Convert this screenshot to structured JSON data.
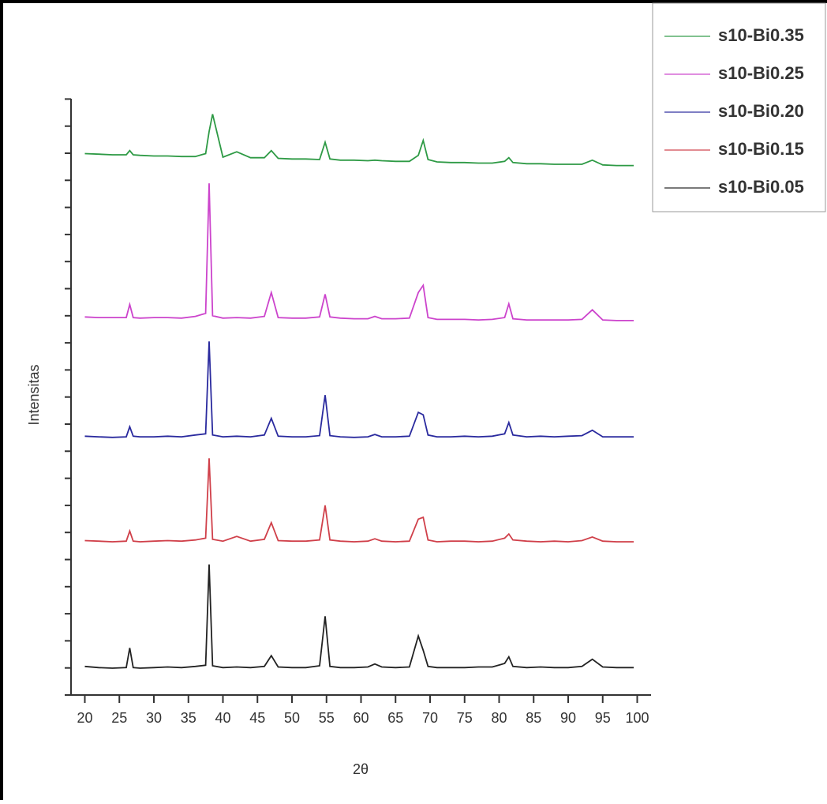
{
  "chart_data": {
    "type": "line",
    "xlabel": "2θ",
    "ylabel": "Intensitas",
    "xlim": [
      18,
      102
    ],
    "xticks": [
      20,
      25,
      30,
      35,
      40,
      45,
      50,
      55,
      60,
      65,
      70,
      75,
      80,
      85,
      90,
      95,
      100
    ],
    "ylim": [
      0,
      100
    ],
    "x": [
      20,
      22,
      24,
      26,
      26.5,
      27,
      28,
      30,
      32,
      34,
      36,
      37.5,
      38,
      38.5,
      40,
      42,
      44,
      46,
      47,
      48,
      50,
      52,
      54,
      54.8,
      55.5,
      57,
      59,
      61,
      62,
      63,
      65,
      67,
      68.3,
      69,
      69.7,
      71,
      73,
      75,
      77,
      79,
      80.8,
      81.4,
      82,
      84,
      86,
      88,
      90,
      92,
      93.5,
      95,
      97,
      99.5
    ],
    "legend": "upper right",
    "series": [
      {
        "name": "s10-Bi0.35",
        "color": "#2e9a45",
        "values": [
          90.8,
          90.7,
          90.6,
          90.6,
          91.3,
          90.6,
          90.5,
          90.4,
          90.4,
          90.3,
          90.3,
          90.8,
          94.5,
          97.4,
          90.2,
          91.1,
          90.1,
          90.1,
          91.3,
          90.0,
          89.9,
          89.9,
          89.8,
          92.7,
          89.9,
          89.7,
          89.7,
          89.6,
          89.7,
          89.6,
          89.5,
          89.5,
          90.5,
          93.0,
          89.8,
          89.4,
          89.3,
          89.3,
          89.2,
          89.2,
          89.5,
          90.1,
          89.3,
          89.1,
          89.1,
          89.0,
          89.0,
          89.0,
          89.7,
          88.9,
          88.8,
          88.8
        ]
      },
      {
        "name": "s10-Bi0.25",
        "color": "#cc44cc",
        "values": [
          63.4,
          63.3,
          63.3,
          63.3,
          65.5,
          63.3,
          63.2,
          63.3,
          63.3,
          63.2,
          63.5,
          64.0,
          85.8,
          63.6,
          63.2,
          63.3,
          63.2,
          63.5,
          67.5,
          63.3,
          63.2,
          63.2,
          63.4,
          67.2,
          63.4,
          63.2,
          63.1,
          63.1,
          63.5,
          63.1,
          63.1,
          63.2,
          67.5,
          68.7,
          63.3,
          63.0,
          63.0,
          63.0,
          62.9,
          63.0,
          63.3,
          65.6,
          63.1,
          62.9,
          62.9,
          62.9,
          62.9,
          63.0,
          64.6,
          62.9,
          62.8,
          62.8
        ]
      },
      {
        "name": "s10-Bi0.20",
        "color": "#2a2a9e",
        "values": [
          43.4,
          43.3,
          43.2,
          43.3,
          45.0,
          43.4,
          43.3,
          43.3,
          43.4,
          43.3,
          43.6,
          43.8,
          59.3,
          43.6,
          43.3,
          43.4,
          43.3,
          43.6,
          46.4,
          43.4,
          43.3,
          43.3,
          43.5,
          50.3,
          43.5,
          43.3,
          43.2,
          43.3,
          43.7,
          43.3,
          43.3,
          43.4,
          47.4,
          47.0,
          43.6,
          43.3,
          43.3,
          43.4,
          43.3,
          43.4,
          43.8,
          45.7,
          43.6,
          43.3,
          43.4,
          43.3,
          43.4,
          43.5,
          44.4,
          43.3,
          43.3,
          43.3
        ]
      },
      {
        "name": "s10-Bi0.15",
        "color": "#d0404a",
        "values": [
          25.9,
          25.8,
          25.7,
          25.8,
          27.5,
          25.8,
          25.7,
          25.8,
          25.9,
          25.8,
          26.0,
          26.3,
          39.7,
          26.1,
          25.8,
          26.6,
          25.8,
          26.1,
          28.9,
          25.9,
          25.8,
          25.8,
          26.0,
          31.8,
          26.0,
          25.8,
          25.7,
          25.8,
          26.2,
          25.8,
          25.7,
          25.8,
          29.5,
          29.8,
          26.0,
          25.7,
          25.8,
          25.8,
          25.7,
          25.8,
          26.3,
          27.0,
          26.0,
          25.8,
          25.7,
          25.8,
          25.7,
          25.9,
          26.5,
          25.8,
          25.7,
          25.7
        ]
      },
      {
        "name": "s10-Bi0.05",
        "color": "#222222",
        "values": [
          4.8,
          4.6,
          4.5,
          4.6,
          7.9,
          4.6,
          4.5,
          4.6,
          4.7,
          4.6,
          4.8,
          5.0,
          21.9,
          4.9,
          4.6,
          4.7,
          4.6,
          4.8,
          6.6,
          4.7,
          4.6,
          4.6,
          4.9,
          13.2,
          4.8,
          4.6,
          4.6,
          4.7,
          5.2,
          4.7,
          4.6,
          4.7,
          9.9,
          7.5,
          4.8,
          4.6,
          4.6,
          4.6,
          4.7,
          4.7,
          5.3,
          6.4,
          4.8,
          4.6,
          4.7,
          4.6,
          4.6,
          4.8,
          6.0,
          4.7,
          4.6,
          4.6
        ]
      }
    ]
  }
}
